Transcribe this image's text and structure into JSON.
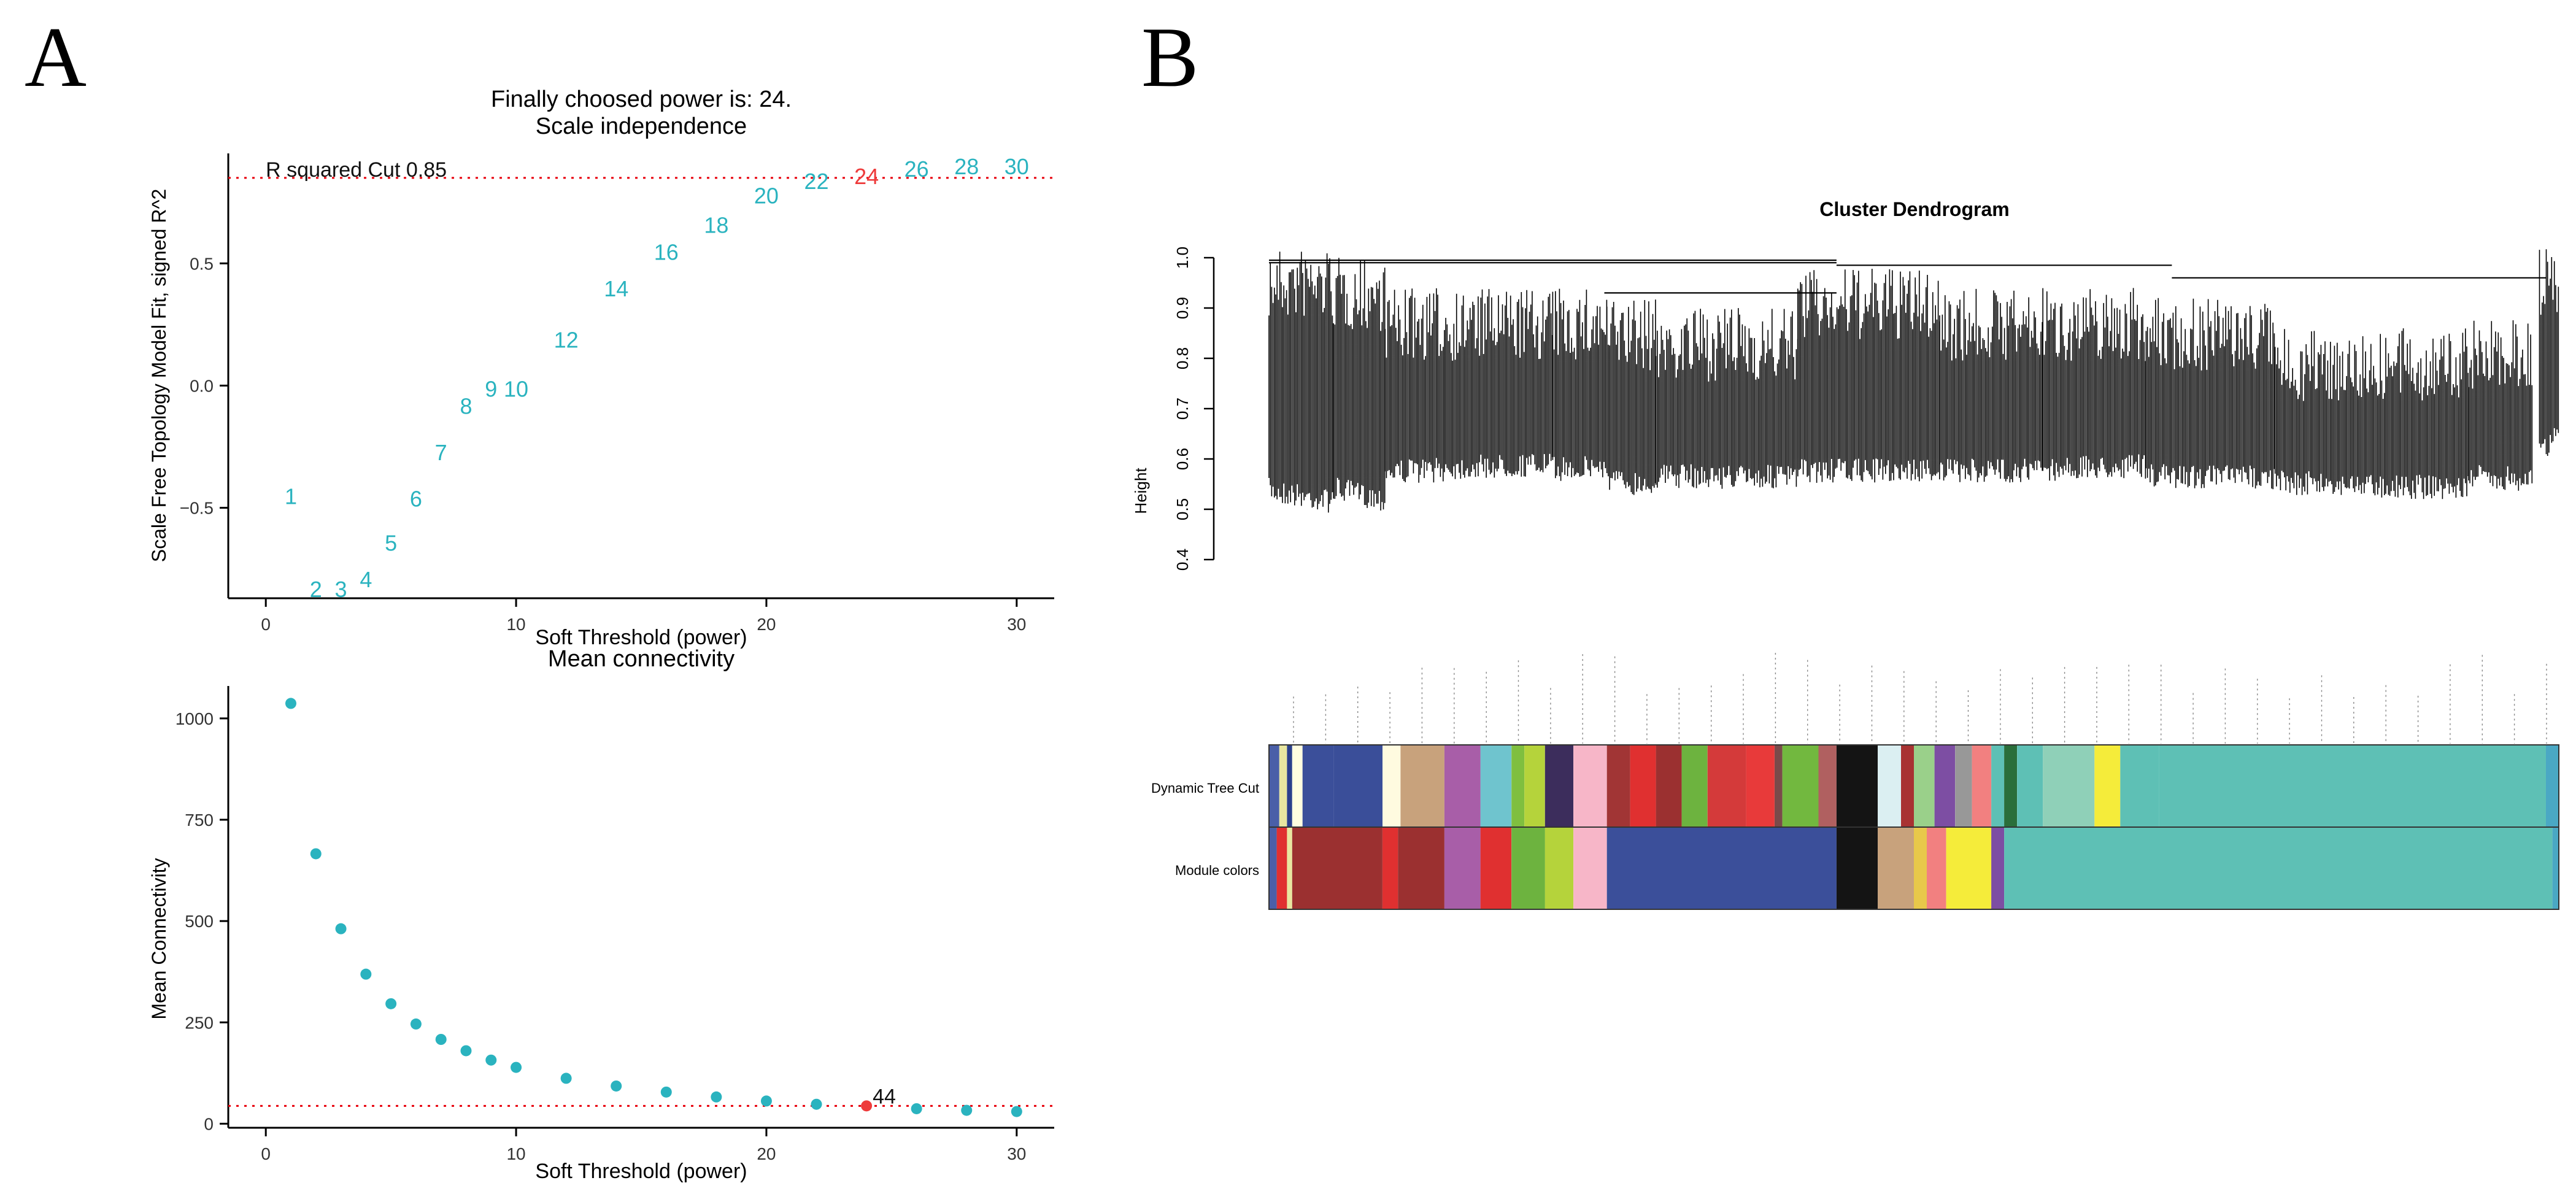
{
  "panels": {
    "a": {
      "letter": "A"
    },
    "b": {
      "letter": "B"
    }
  },
  "colors": {
    "label_teal": "#2ab3bf",
    "highlight_red": "#ee3b3b",
    "dot_teal": "#2ab3bf",
    "cutline_red": "#e8000b"
  },
  "chart_data": [
    {
      "id": "scale_independence",
      "type": "scatter",
      "marker": "text-labels",
      "title": "Finally choosed power is: 24.",
      "subtitle": "Scale independence",
      "xlabel": "Soft Threshold (power)",
      "ylabel": "Scale Free Topology Model Fit, signed R^2",
      "xlim": [
        -1.5,
        31.5
      ],
      "ylim": [
        -0.87,
        0.95
      ],
      "xticks": [
        0,
        10,
        20,
        30
      ],
      "yticks": [
        -0.5,
        0.0,
        0.5
      ],
      "ytick_labels": [
        "−0.5",
        "0.0",
        "0.5"
      ],
      "hline": {
        "y": 0.85,
        "label": "R squared Cut 0.85"
      },
      "highlight": 24,
      "x": [
        1,
        2,
        3,
        4,
        5,
        6,
        7,
        8,
        9,
        10,
        12,
        14,
        16,
        18,
        20,
        22,
        24,
        26,
        28,
        30
      ],
      "y": [
        -0.45,
        -0.83,
        -0.83,
        -0.79,
        -0.64,
        -0.46,
        -0.27,
        -0.08,
        -0.01,
        -0.01,
        0.19,
        0.4,
        0.55,
        0.66,
        0.78,
        0.84,
        0.86,
        0.89,
        0.9,
        0.9
      ],
      "labels": [
        "1",
        "2",
        "3",
        "4",
        "5",
        "6",
        "7",
        "8",
        "9",
        "10",
        "12",
        "14",
        "16",
        "18",
        "20",
        "22",
        "24",
        "26",
        "28",
        "30"
      ]
    },
    {
      "id": "mean_connectivity",
      "type": "scatter",
      "title": "Mean connectivity",
      "xlabel": "Soft Threshold (power)",
      "ylabel": "Mean Connectivity",
      "xlim": [
        -1.5,
        31.5
      ],
      "ylim": [
        -10,
        1080
      ],
      "xticks": [
        0,
        10,
        20,
        30
      ],
      "yticks": [
        0,
        250,
        500,
        750,
        1000
      ],
      "hline": {
        "y": 44
      },
      "highlight": 24,
      "annotation": "44",
      "x": [
        1,
        2,
        3,
        4,
        5,
        6,
        7,
        8,
        9,
        10,
        12,
        14,
        16,
        18,
        20,
        22,
        24,
        26,
        28,
        30
      ],
      "y": [
        1037,
        666,
        481,
        369,
        296,
        246,
        208,
        180,
        157,
        139,
        112,
        93,
        78,
        66,
        56,
        48,
        44,
        37,
        33,
        30
      ]
    },
    {
      "id": "cluster_dendrogram",
      "type": "dendrogram",
      "title": "Cluster Dendrogram",
      "ylabel": "Height",
      "ylim": [
        0.4,
        1.0
      ],
      "yticks": [
        0.4,
        0.5,
        0.6,
        0.7,
        0.8,
        0.9,
        1.0
      ],
      "color_rows": [
        {
          "label": "Dynamic Tree Cut",
          "segments": [
            [
              0.0,
              "#4a5fa8"
            ],
            [
              0.008,
              "#e8e6a0"
            ],
            [
              0.014,
              "#2b3f8c"
            ],
            [
              0.018,
              "#fffde0"
            ],
            [
              0.026,
              "#3b4f9a"
            ],
            [
              0.05,
              "#3a4e99"
            ],
            [
              0.088,
              "#fffbe0"
            ],
            [
              0.102,
              "#c8a27c"
            ],
            [
              0.136,
              "#a85ea8"
            ],
            [
              0.164,
              "#6fc4ce"
            ],
            [
              0.188,
              "#7fbf3f"
            ],
            [
              0.198,
              "#b5d33b"
            ],
            [
              0.214,
              "#3c2d5c"
            ],
            [
              0.236,
              "#f7b6c8"
            ],
            [
              0.262,
              "#a13535"
            ],
            [
              0.28,
              "#e03030"
            ],
            [
              0.3,
              "#9b3030"
            ],
            [
              0.32,
              "#6db33f"
            ],
            [
              0.34,
              "#d43a3a"
            ],
            [
              0.37,
              "#e83a3a"
            ],
            [
              0.392,
              "#7a4a4a"
            ],
            [
              0.398,
              "#72b83f"
            ],
            [
              0.426,
              "#b06060"
            ],
            [
              0.44,
              "#141414"
            ],
            [
              0.472,
              "#dbeff2"
            ],
            [
              0.49,
              "#a83232"
            ],
            [
              0.5,
              "#9ad08a"
            ],
            [
              0.516,
              "#7d4ea3"
            ],
            [
              0.532,
              "#989898"
            ],
            [
              0.545,
              "#f28080"
            ],
            [
              0.56,
              "#5ec0b5"
            ],
            [
              0.57,
              "#2a6e3a"
            ],
            [
              0.58,
              "#5ec0b5"
            ],
            [
              0.6,
              "#8fd0b8"
            ],
            [
              0.64,
              "#f5ec3a"
            ],
            [
              0.66,
              "#5ec0b5"
            ],
            [
              0.69,
              "#5ec0b5"
            ],
            [
              0.99,
              "#4aa8c4"
            ]
          ]
        },
        {
          "label": "Module colors",
          "segments": [
            [
              0.0,
              "#4a5fa8"
            ],
            [
              0.006,
              "#e03030"
            ],
            [
              0.014,
              "#e8e6a0"
            ],
            [
              0.018,
              "#9b3030"
            ],
            [
              0.088,
              "#e03030"
            ],
            [
              0.1,
              "#9b3030"
            ],
            [
              0.136,
              "#a85ea8"
            ],
            [
              0.164,
              "#e03030"
            ],
            [
              0.188,
              "#6db33f"
            ],
            [
              0.214,
              "#b5d33b"
            ],
            [
              0.236,
              "#f7b6c8"
            ],
            [
              0.262,
              "#3b4f9a"
            ],
            [
              0.44,
              "#141414"
            ],
            [
              0.472,
              "#c8a27c"
            ],
            [
              0.5,
              "#e8c84a"
            ],
            [
              0.51,
              "#f28080"
            ],
            [
              0.525,
              "#f5ec3a"
            ],
            [
              0.56,
              "#7d4ea3"
            ],
            [
              0.57,
              "#5ec0b5"
            ],
            [
              0.995,
              "#4aa8c4"
            ]
          ]
        }
      ]
    }
  ]
}
